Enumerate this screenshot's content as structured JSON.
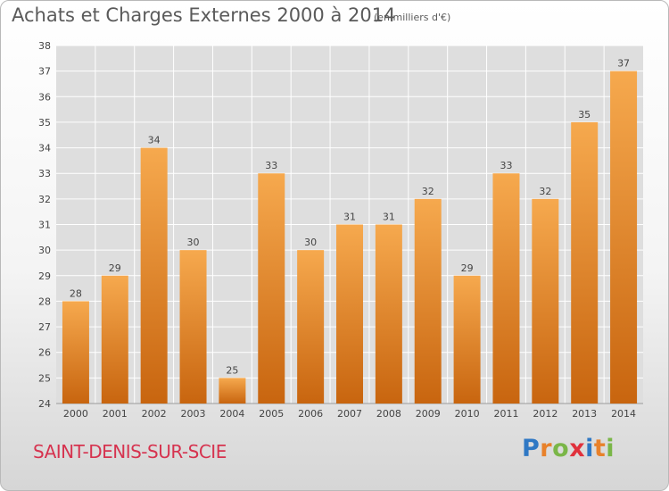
{
  "header": {
    "title": "Achats et Charges Externes 2000 à 2014",
    "unit": "(en milliers d'€)"
  },
  "footer": {
    "commune": "SAINT-DENIS-SUR-SCIE",
    "logo_letters": [
      "P",
      "r",
      "o",
      "x",
      "i",
      "t",
      "i"
    ],
    "logo_colors": [
      "#2f78c4",
      "#e8812a",
      "#7ab648",
      "#e0313c",
      "#2f78c4",
      "#e8812a",
      "#7ab648"
    ]
  },
  "colors": {
    "bar_light": "#f6a94e",
    "bar_dark": "#c8650f",
    "grid": "#ffffff",
    "plot_bg": "#dedede",
    "text": "#444444"
  },
  "chart_data": {
    "type": "bar",
    "title": "Achats et Charges Externes 2000 à 2014",
    "subtitle": "(en milliers d'€)",
    "categories": [
      "2000",
      "2001",
      "2002",
      "2003",
      "2004",
      "2005",
      "2006",
      "2007",
      "2008",
      "2009",
      "2010",
      "2011",
      "2012",
      "2013",
      "2014"
    ],
    "values": [
      28,
      29,
      34,
      30,
      25,
      33,
      30,
      31,
      31,
      32,
      29,
      33,
      32,
      35,
      37
    ],
    "ylim": [
      24,
      38
    ],
    "yticks": [
      24,
      25,
      26,
      27,
      28,
      29,
      30,
      31,
      32,
      33,
      34,
      35,
      36,
      37,
      38
    ],
    "grid": true,
    "data_labels": true
  }
}
